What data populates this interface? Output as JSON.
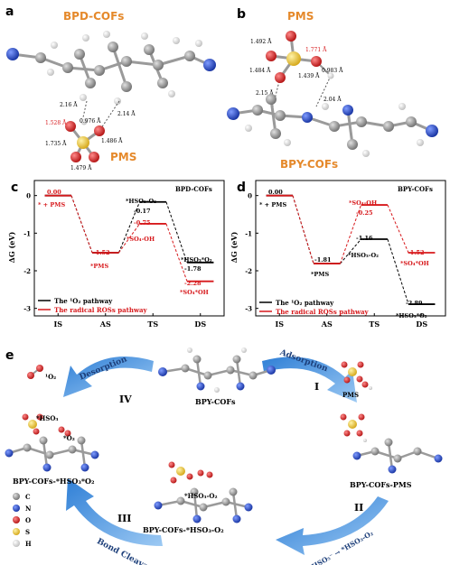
{
  "panels": {
    "a": {
      "letter": "a",
      "title": "BPD-COFs",
      "pms_label": "PMS",
      "bonds": [
        "2.16 Å",
        "0.976 Å",
        "1.528 Å",
        "1.735 Å",
        "1.486 Å",
        "2.14 Å",
        "1.479 Å"
      ]
    },
    "b": {
      "letter": "b",
      "title": "PMS",
      "cof_label": "BPY-COFs",
      "bonds": [
        "1.492 Å",
        "1.771 Å",
        "1.484 Å",
        "1.439 Å",
        "0.983 Å",
        "2.15 Å",
        "2.04 Å"
      ]
    },
    "c": {
      "letter": "c",
      "title": "BPD-COFs",
      "ylabel": "ΔG (eV)",
      "x_ticks": [
        "IS",
        "AS",
        "TS",
        "DS"
      ],
      "y_ticks": [
        "0",
        "-1",
        "-2",
        "-3"
      ],
      "legend": [
        "The ¹O₂ pathway",
        "The radical ROSs pathway"
      ],
      "labels": {
        "is_val": "0.00",
        "is_name": "* + PMS",
        "as_val": "-1.52",
        "as_name": "*PMS",
        "ts_black_name": "*HSO₃-O₂",
        "ts_black_val": "-0.17",
        "ts_red_val": "-0.75",
        "ts_red_name": "*SO₄-OH",
        "ds_black_name": "*HSO₃*O₂",
        "ds_black_val": "-1.78",
        "ds_red_val": "-2.28",
        "ds_red_name": "*SO₄*OH"
      }
    },
    "d": {
      "letter": "d",
      "title": "BPY-COFs",
      "ylabel": "ΔG (eV)",
      "x_ticks": [
        "IS",
        "AS",
        "TS",
        "DS"
      ],
      "y_ticks": [
        "0",
        "-1",
        "-2",
        "-3"
      ],
      "legend": [
        "The ¹O₂ pathway",
        "The radical ROSs pathway"
      ],
      "labels": {
        "is_val": "0.00",
        "is_name": "* + PMS",
        "as_val": "-1.81",
        "as_name": "*PMS",
        "ts_red_name": "*SO₄-OH",
        "ts_red_val": "-0.25",
        "ts_black_val": "-1.16",
        "ts_black_name": "*HSO₃-O₂",
        "ds_red_val": "-1.52",
        "ds_red_name": "*SO₄*OH",
        "ds_black_val": "-2.89",
        "ds_black_name": "*HSO₃*O₂"
      }
    },
    "e": {
      "letter": "e",
      "top_cof": "BPY-COFs",
      "pms": "PMS",
      "adsorption": "Adsorption",
      "desorption": "Desorption",
      "bond_cleavage": "Bond Cleavage",
      "step_transform": "HSO₅⁻ → *HSO₃-O₂",
      "roman": [
        "I",
        "II",
        "III",
        "IV"
      ],
      "state_right": "BPY-COFs-PMS",
      "state_bottom": "BPY-COFs-*HSO₃-O₂",
      "state_left": "BPY-COFs-*HSO₃*O₂",
      "bottom_tag": "*HSO₃-O₂",
      "left_tag_hso3": "*HSO₃",
      "left_tag_o2": "*O₂",
      "singlet": "¹O₂",
      "legend_atoms": [
        "C",
        "N",
        "O",
        "S",
        "H"
      ]
    }
  },
  "chart_data": [
    {
      "type": "line",
      "title": "BPD-COFs",
      "ylabel": "ΔG (eV)",
      "categories": [
        "IS",
        "AS",
        "TS",
        "DS"
      ],
      "ylim": [
        -3.2,
        0.4
      ],
      "series": [
        {
          "name": "The ¹O₂ pathway",
          "color": "#000000",
          "values": [
            0.0,
            -1.52,
            -0.17,
            -1.78
          ]
        },
        {
          "name": "The radical ROSs pathway",
          "color": "#d7191c",
          "values": [
            0.0,
            -1.52,
            -0.75,
            -2.28
          ]
        }
      ]
    },
    {
      "type": "line",
      "title": "BPY-COFs",
      "ylabel": "ΔG (eV)",
      "categories": [
        "IS",
        "AS",
        "TS",
        "DS"
      ],
      "ylim": [
        -3.2,
        0.4
      ],
      "series": [
        {
          "name": "The ¹O₂ pathway",
          "color": "#000000",
          "values": [
            0.0,
            -1.81,
            -1.16,
            -2.89
          ]
        },
        {
          "name": "The radical ROSs pathway",
          "color": "#d7191c",
          "values": [
            0.0,
            -1.81,
            -0.25,
            -1.52
          ]
        }
      ]
    }
  ],
  "colors": {
    "carbon": "#8c8c8c",
    "nitrogen": "#1f3fbf",
    "oxygen": "#d81b1b",
    "sulfur": "#e8c531",
    "hydrogen": "#e6e6e6",
    "arrow": "#4a90d9",
    "accent_orange": "#e5892b",
    "red": "#d7191c"
  }
}
